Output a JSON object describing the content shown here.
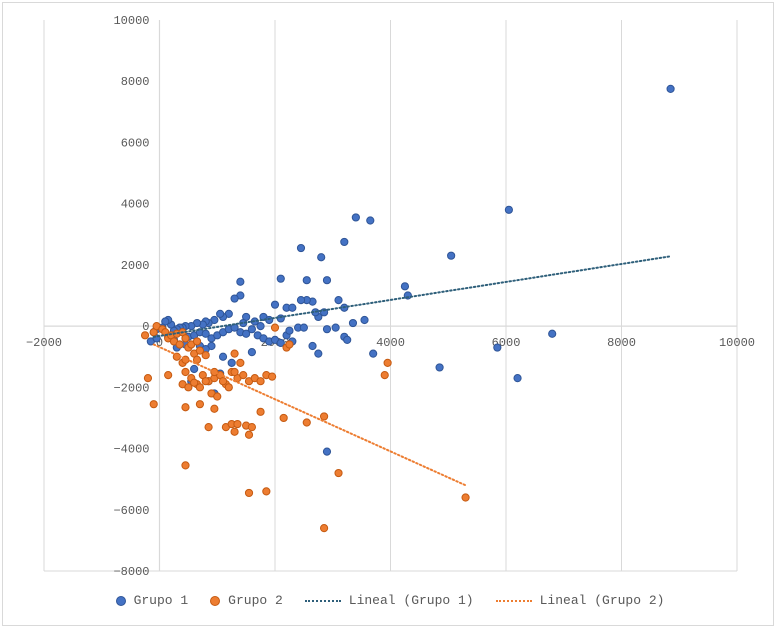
{
  "chart_data": {
    "type": "scatter",
    "title": "",
    "xlabel": "",
    "ylabel": "",
    "xlim": [
      -2000,
      10000
    ],
    "ylim": [
      -8000,
      10000
    ],
    "x_ticks": [
      -2000,
      0,
      2000,
      4000,
      6000,
      8000,
      10000
    ],
    "y_ticks": [
      -8000,
      -6000,
      -4000,
      -2000,
      0,
      2000,
      4000,
      6000,
      8000,
      10000
    ],
    "x_tick_labels": [
      "−2000",
      "0",
      "2000",
      "4000",
      "6000",
      "8000",
      "10000"
    ],
    "y_tick_labels": [
      "−8000",
      "−6000",
      "−4000",
      "−2000",
      "0",
      "2000",
      "4000",
      "6000",
      "8000",
      "10000"
    ],
    "grid": "vertical",
    "legend_position": "bottom",
    "colors": {
      "grupo1": "#4472c4",
      "grupo1_edge": "#2f5597",
      "grupo2": "#ed7d31",
      "grupo2_edge": "#c55a11",
      "trend1": "#2e5f7a",
      "trend2": "#ed7d31",
      "grid": "#d9d9d9"
    },
    "series": [
      {
        "name": "Grupo 1",
        "points": [
          [
            8850,
            7750
          ],
          [
            6050,
            3800
          ],
          [
            5050,
            2300
          ],
          [
            3650,
            3450
          ],
          [
            3400,
            3550
          ],
          [
            3200,
            2750
          ],
          [
            2800,
            2250
          ],
          [
            2450,
            2550
          ],
          [
            2900,
            1500
          ],
          [
            2550,
            1500
          ],
          [
            2100,
            1550
          ],
          [
            1400,
            1450
          ],
          [
            1400,
            1000
          ],
          [
            1300,
            900
          ],
          [
            4250,
            1300
          ],
          [
            4300,
            1000
          ],
          [
            3550,
            200
          ],
          [
            3350,
            100
          ],
          [
            3200,
            600
          ],
          [
            3100,
            850
          ],
          [
            2850,
            450
          ],
          [
            2750,
            300
          ],
          [
            2650,
            800
          ],
          [
            2700,
            450
          ],
          [
            2550,
            850
          ],
          [
            2450,
            850
          ],
          [
            2200,
            600
          ],
          [
            2300,
            600
          ],
          [
            2100,
            250
          ],
          [
            2000,
            700
          ],
          [
            1800,
            300
          ],
          [
            1650,
            150
          ],
          [
            1750,
            0
          ],
          [
            1900,
            200
          ],
          [
            1500,
            300
          ],
          [
            1450,
            100
          ],
          [
            1200,
            400
          ],
          [
            1100,
            300
          ],
          [
            1050,
            400
          ],
          [
            950,
            200
          ],
          [
            850,
            100
          ],
          [
            800,
            150
          ],
          [
            750,
            50
          ],
          [
            650,
            100
          ],
          [
            550,
            0
          ],
          [
            450,
            0
          ],
          [
            400,
            -50
          ],
          [
            350,
            -50
          ],
          [
            300,
            -100
          ],
          [
            250,
            -150
          ],
          [
            200,
            50
          ],
          [
            150,
            200
          ],
          [
            100,
            150
          ],
          [
            50,
            -50
          ],
          [
            -50,
            -100
          ],
          [
            -100,
            -200
          ],
          [
            -150,
            -500
          ],
          [
            -50,
            -400
          ],
          [
            150,
            -350
          ],
          [
            250,
            -450
          ],
          [
            300,
            -700
          ],
          [
            350,
            -600
          ],
          [
            400,
            -200
          ],
          [
            500,
            -350
          ],
          [
            600,
            -300
          ],
          [
            700,
            -200
          ],
          [
            800,
            -250
          ],
          [
            900,
            -400
          ],
          [
            1000,
            -300
          ],
          [
            1100,
            -200
          ],
          [
            1200,
            -100
          ],
          [
            1300,
            -50
          ],
          [
            1400,
            -200
          ],
          [
            1500,
            -250
          ],
          [
            1600,
            -100
          ],
          [
            1700,
            -300
          ],
          [
            1800,
            -400
          ],
          [
            1900,
            -500
          ],
          [
            2000,
            -450
          ],
          [
            2100,
            -550
          ],
          [
            2200,
            -300
          ],
          [
            2300,
            -500
          ],
          [
            2250,
            -150
          ],
          [
            2400,
            -50
          ],
          [
            2500,
            -50
          ],
          [
            2650,
            -650
          ],
          [
            2750,
            -900
          ],
          [
            2900,
            -100
          ],
          [
            3050,
            -50
          ],
          [
            3200,
            -350
          ],
          [
            3250,
            -450
          ],
          [
            3700,
            -900
          ],
          [
            4850,
            -1350
          ],
          [
            5850,
            -700
          ],
          [
            6200,
            -1700
          ],
          [
            6800,
            -250
          ],
          [
            2900,
            -4100
          ],
          [
            850,
            -1800
          ],
          [
            950,
            -2200
          ],
          [
            550,
            -1800
          ],
          [
            600,
            -1400
          ],
          [
            1050,
            -1550
          ],
          [
            700,
            -650
          ],
          [
            900,
            -650
          ],
          [
            1600,
            -850
          ],
          [
            1100,
            -1000
          ],
          [
            450,
            -600
          ],
          [
            800,
            -750
          ],
          [
            1250,
            -1200
          ]
        ]
      },
      {
        "name": "Grupo 2",
        "points": [
          [
            -250,
            -300
          ],
          [
            -100,
            -200
          ],
          [
            -50,
            0
          ],
          [
            50,
            -100
          ],
          [
            100,
            -200
          ],
          [
            150,
            -400
          ],
          [
            200,
            -300
          ],
          [
            250,
            -500
          ],
          [
            300,
            -250
          ],
          [
            350,
            -600
          ],
          [
            400,
            -200
          ],
          [
            450,
            -400
          ],
          [
            500,
            -700
          ],
          [
            550,
            -600
          ],
          [
            600,
            -900
          ],
          [
            650,
            -500
          ],
          [
            700,
            -800
          ],
          [
            300,
            -1000
          ],
          [
            400,
            -1200
          ],
          [
            450,
            -1500
          ],
          [
            550,
            -1700
          ],
          [
            650,
            -1900
          ],
          [
            750,
            -1600
          ],
          [
            850,
            -1800
          ],
          [
            950,
            -1700
          ],
          [
            1050,
            -1600
          ],
          [
            1150,
            -1900
          ],
          [
            1250,
            -1500
          ],
          [
            1350,
            -1700
          ],
          [
            1450,
            -1600
          ],
          [
            1550,
            -1800
          ],
          [
            1650,
            -1700
          ],
          [
            1750,
            -1800
          ],
          [
            1850,
            -1600
          ],
          [
            1950,
            -1650
          ],
          [
            400,
            -1900
          ],
          [
            500,
            -2000
          ],
          [
            600,
            -1850
          ],
          [
            700,
            -2000
          ],
          [
            800,
            -1800
          ],
          [
            900,
            -2200
          ],
          [
            1000,
            -2300
          ],
          [
            1100,
            -1800
          ],
          [
            1200,
            -2000
          ],
          [
            150,
            -1600
          ],
          [
            -200,
            -1700
          ],
          [
            -100,
            -2550
          ],
          [
            450,
            -2650
          ],
          [
            700,
            -2550
          ],
          [
            950,
            -2700
          ],
          [
            1150,
            -3300
          ],
          [
            1250,
            -3200
          ],
          [
            1350,
            -3200
          ],
          [
            1500,
            -3250
          ],
          [
            1600,
            -3300
          ],
          [
            1750,
            -2800
          ],
          [
            2150,
            -3000
          ],
          [
            2550,
            -3150
          ],
          [
            2850,
            -2950
          ],
          [
            850,
            -3300
          ],
          [
            1300,
            -3450
          ],
          [
            1550,
            -3550
          ],
          [
            450,
            -4550
          ],
          [
            1550,
            -5450
          ],
          [
            1850,
            -5400
          ],
          [
            2850,
            -6600
          ],
          [
            3100,
            -4800
          ],
          [
            5300,
            -5600
          ],
          [
            3900,
            -1600
          ],
          [
            3950,
            -1200
          ],
          [
            2000,
            -50
          ],
          [
            2200,
            -700
          ],
          [
            2250,
            -600
          ],
          [
            650,
            -1100
          ],
          [
            800,
            -950
          ],
          [
            1300,
            -900
          ],
          [
            1400,
            -1200
          ],
          [
            1300,
            -1500
          ],
          [
            950,
            -1500
          ],
          [
            450,
            -1100
          ]
        ]
      }
    ],
    "trendlines": [
      {
        "name": "Lineal (Grupo 1)",
        "from": [
          -100,
          -350
        ],
        "to": [
          8850,
          2280
        ]
      },
      {
        "name": "Lineal (Grupo 2)",
        "from": [
          -100,
          -600
        ],
        "to": [
          5300,
          -5200
        ]
      }
    ]
  },
  "legend": {
    "items": [
      {
        "label": "Grupo 1",
        "kind": "marker",
        "color": "#4472c4"
      },
      {
        "label": "Grupo 2",
        "kind": "marker",
        "color": "#ed7d31"
      },
      {
        "label": "Lineal (Grupo 1)",
        "kind": "line",
        "color": "#2e5f7a"
      },
      {
        "label": "Lineal (Grupo 2)",
        "kind": "line",
        "color": "#ed7d31"
      }
    ]
  }
}
